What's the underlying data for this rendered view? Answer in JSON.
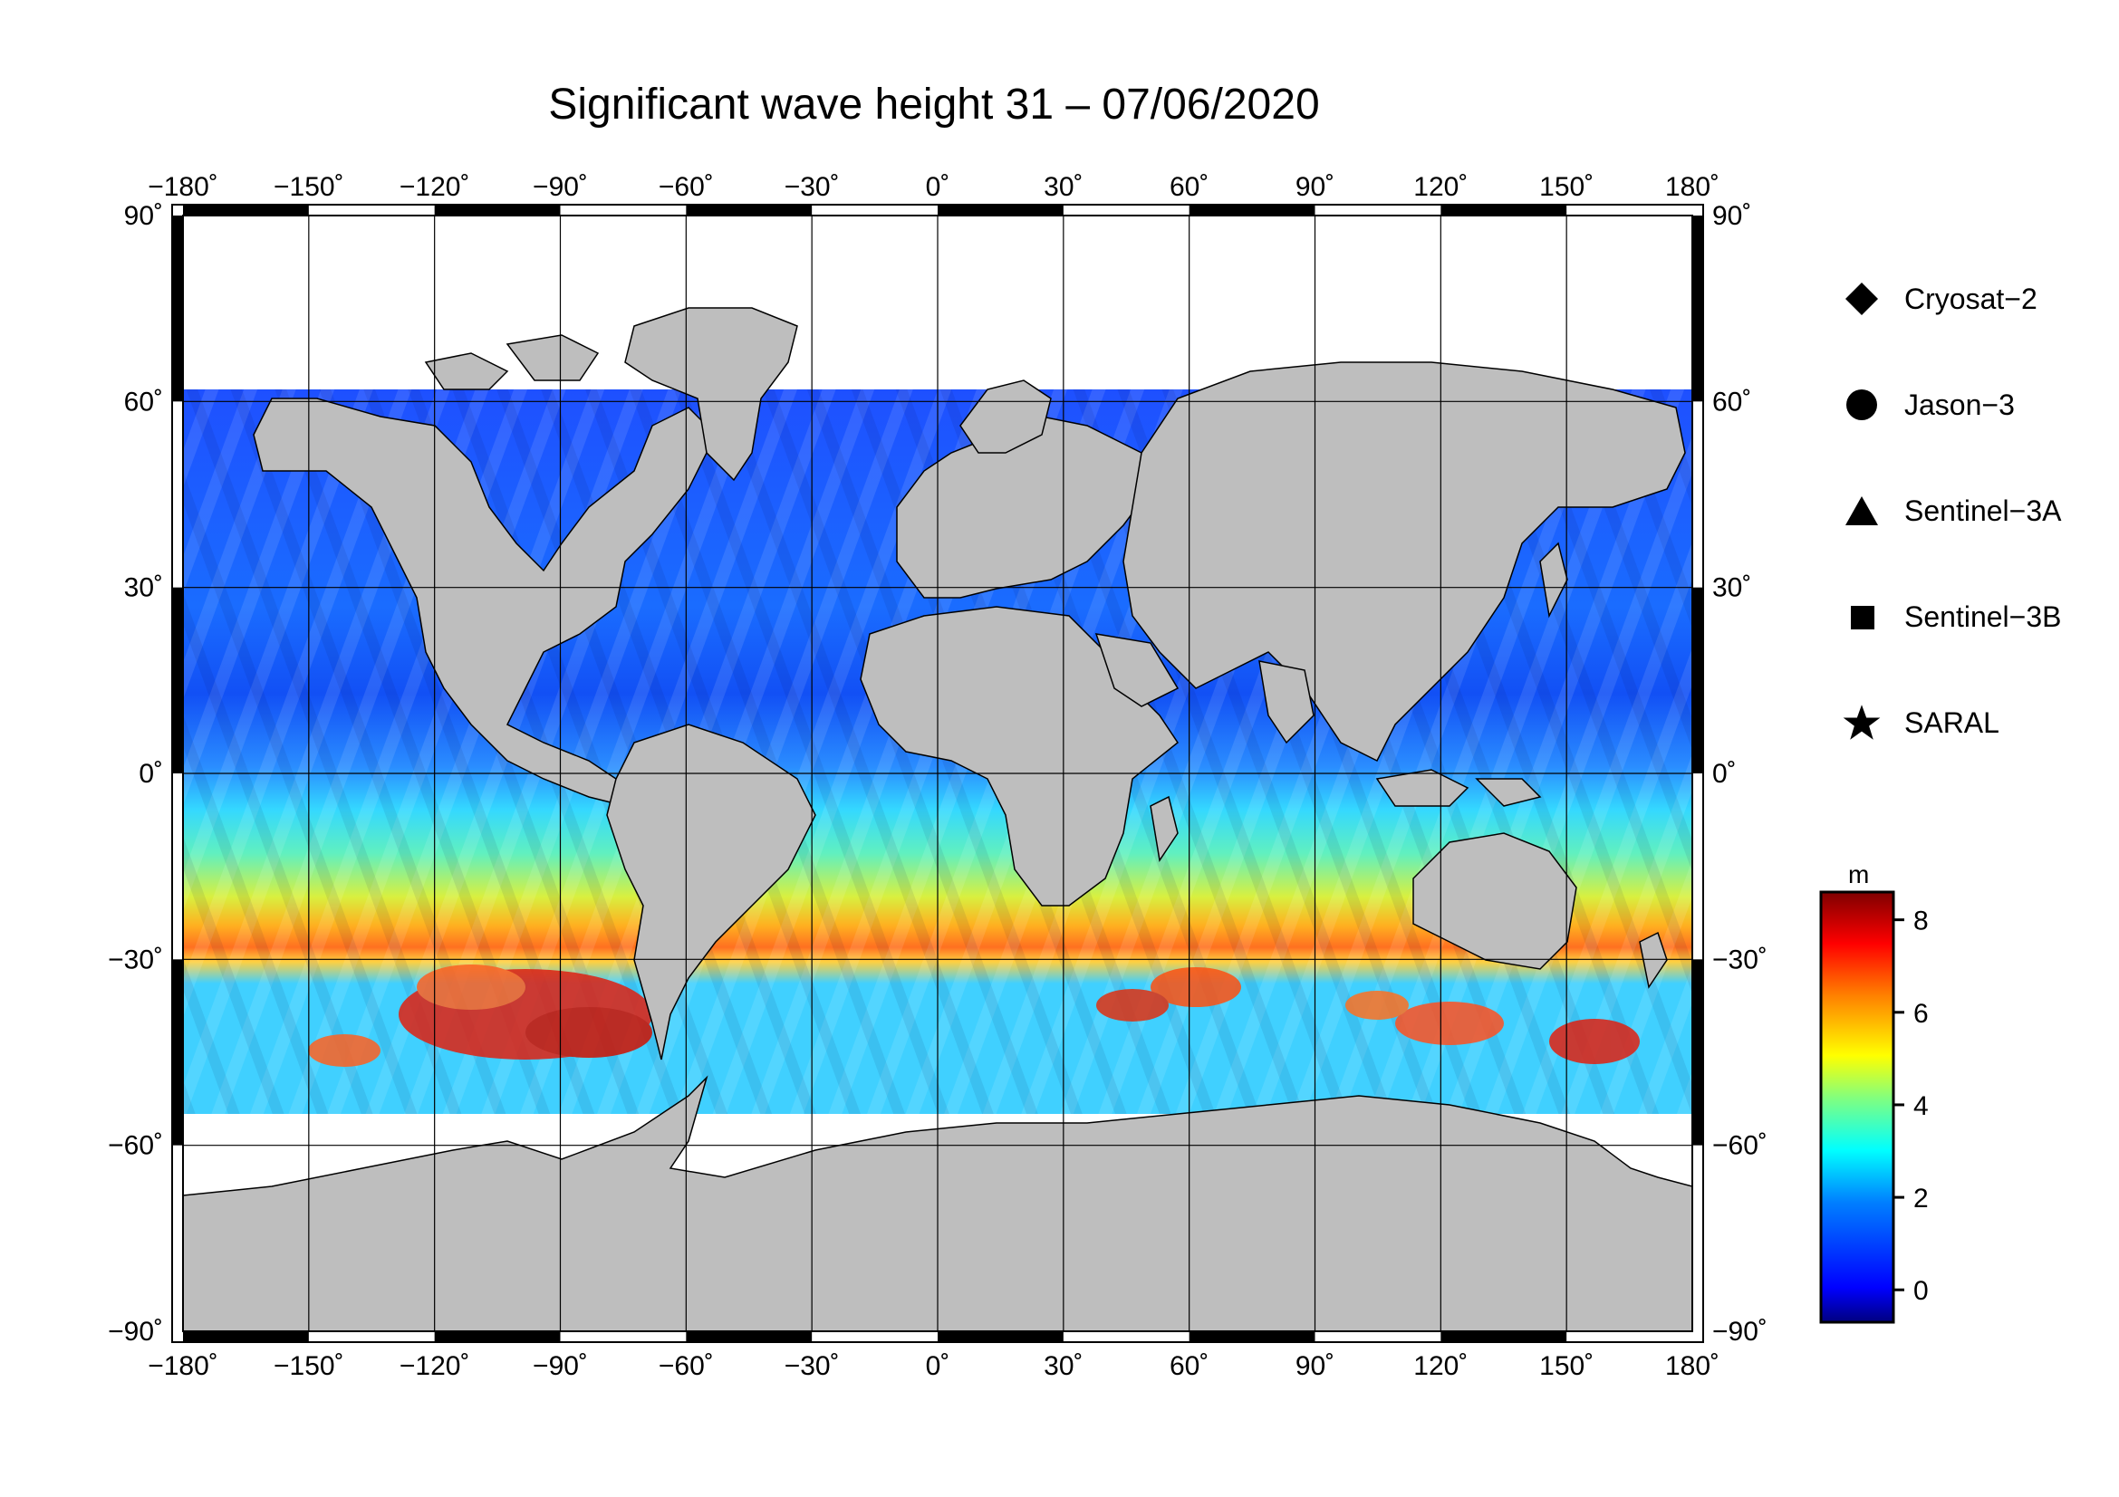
{
  "title": "Significant wave height 31 – 07/06/2020",
  "lon_labels": [
    "−180",
    "−150",
    "−120",
    "−90",
    "−60",
    "−30",
    "0",
    "30",
    "60",
    "90",
    "120",
    "150",
    "180"
  ],
  "lat_labels": [
    "90",
    "60",
    "30",
    "0",
    "−30",
    "−60",
    "−90"
  ],
  "degree_symbol": "˚",
  "legend": [
    {
      "label": "Cryosat−2",
      "symbol": "diamond-icon"
    },
    {
      "label": "Jason−3",
      "symbol": "circle-icon"
    },
    {
      "label": "Sentinel−3A",
      "symbol": "triangle-icon"
    },
    {
      "label": "Sentinel−3B",
      "symbol": "square-icon"
    },
    {
      "label": "SARAL",
      "symbol": "star-icon"
    }
  ],
  "colorbar": {
    "unit": "m",
    "min": -0.7,
    "max": 8.6,
    "ticks": [
      "8",
      "6",
      "4",
      "2",
      "0"
    ],
    "colors": [
      "#00007f",
      "#0000ff",
      "#0080ff",
      "#00ffff",
      "#80ff80",
      "#ffff00",
      "#ff8000",
      "#ff0000",
      "#7f0000"
    ]
  },
  "colors": {
    "land": "#bebebe",
    "ice": "#ffffff",
    "coast": "#000000"
  }
}
